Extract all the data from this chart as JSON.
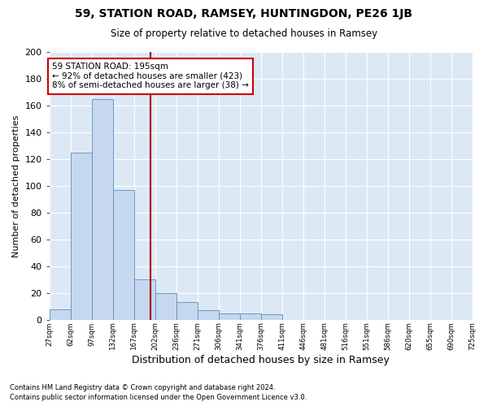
{
  "title": "59, STATION ROAD, RAMSEY, HUNTINGDON, PE26 1JB",
  "subtitle": "Size of property relative to detached houses in Ramsey",
  "xlabel": "Distribution of detached houses by size in Ramsey",
  "ylabel": "Number of detached properties",
  "footnote1": "Contains HM Land Registry data © Crown copyright and database right 2024.",
  "footnote2": "Contains public sector information licensed under the Open Government Licence v3.0.",
  "bin_labels": [
    "27sqm",
    "62sqm",
    "97sqm",
    "132sqm",
    "167sqm",
    "202sqm",
    "236sqm",
    "271sqm",
    "306sqm",
    "341sqm",
    "376sqm",
    "411sqm",
    "446sqm",
    "481sqm",
    "516sqm",
    "551sqm",
    "586sqm",
    "620sqm",
    "655sqm",
    "690sqm",
    "725sqm"
  ],
  "bar_values": [
    8,
    125,
    165,
    97,
    30,
    20,
    13,
    7,
    5,
    5,
    4,
    0,
    0,
    0,
    0,
    0,
    0,
    0,
    0,
    0
  ],
  "bar_color": "#c5d8ef",
  "bar_edge_color": "#5b8db8",
  "annotation_text_line1": "59 STATION ROAD: 195sqm",
  "annotation_text_line2": "← 92% of detached houses are smaller (423)",
  "annotation_text_line3": "8% of semi-detached houses are larger (38) →",
  "annotation_box_color": "#ffffff",
  "annotation_box_edge": "#cc0000",
  "vline_color": "#aa0000",
  "ylim": [
    0,
    200
  ],
  "yticks": [
    0,
    20,
    40,
    60,
    80,
    100,
    120,
    140,
    160,
    180,
    200
  ],
  "fig_bg_color": "#ffffff",
  "plot_bg_color": "#dce9f5",
  "grid_color": "#ffffff"
}
